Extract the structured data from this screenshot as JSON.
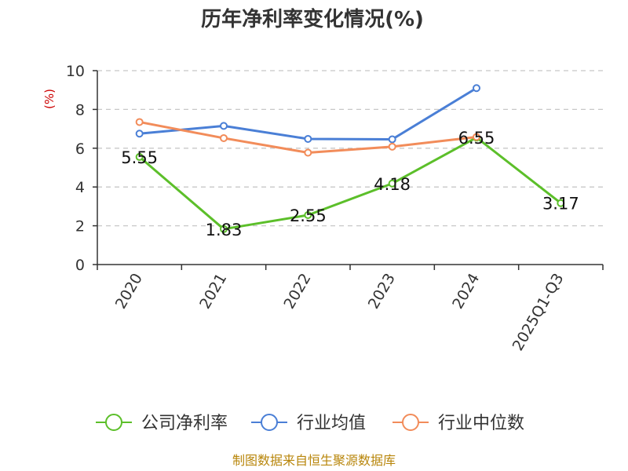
{
  "chart_data": {
    "type": "line",
    "title": "历年净利率变化情况(%)",
    "ylabel": "(%)",
    "ylim": [
      0,
      10
    ],
    "yticks": [
      0,
      2,
      4,
      6,
      8,
      10
    ],
    "grid": true,
    "legend_position": "bottom",
    "categories": [
      "2020",
      "2021",
      "2022",
      "2023",
      "2024",
      "2025Q1-Q3"
    ],
    "series": [
      {
        "name": "公司净利率",
        "color": "#5cbf2a",
        "values": [
          5.55,
          1.83,
          2.55,
          4.18,
          6.55,
          3.17
        ],
        "labels": [
          "5.55",
          "1.83",
          "2.55",
          "4.18",
          "6.55",
          "3.17"
        ]
      },
      {
        "name": "行业均值",
        "color": "#4a7fd6",
        "values": [
          6.75,
          7.15,
          6.48,
          6.46,
          9.1,
          null
        ]
      },
      {
        "name": "行业中位数",
        "color": "#f28c5a",
        "values": [
          7.35,
          6.52,
          5.77,
          6.08,
          6.58,
          null
        ]
      }
    ]
  },
  "source": "制图数据来自恒生聚源数据库"
}
